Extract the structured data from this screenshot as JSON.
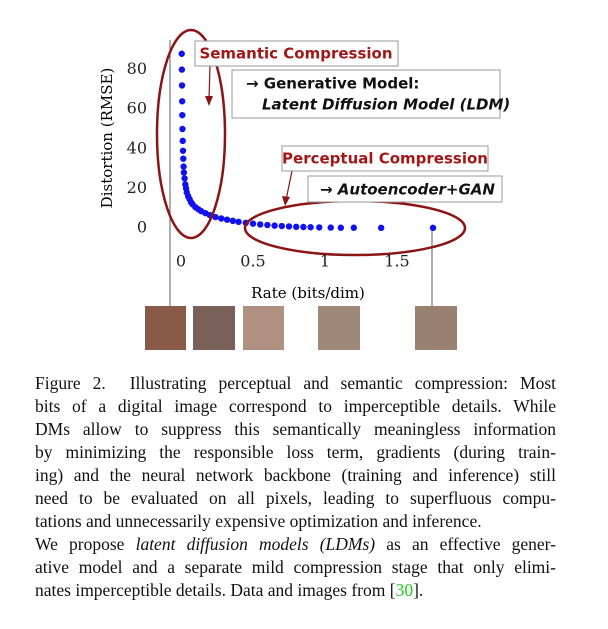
{
  "chart_data": {
    "type": "scatter",
    "x_label": "Rate (bits/dim)",
    "y_label": "Distortion (RMSE)",
    "x": [
      0.005,
      0.006,
      0.007,
      0.008,
      0.009,
      0.01,
      0.012,
      0.014,
      0.016,
      0.018,
      0.02,
      0.025,
      0.03,
      0.035,
      0.04,
      0.05,
      0.06,
      0.07,
      0.08,
      0.1,
      0.12,
      0.14,
      0.17,
      0.2,
      0.24,
      0.28,
      0.32,
      0.36,
      0.4,
      0.45,
      0.5,
      0.55,
      0.6,
      0.65,
      0.7,
      0.75,
      0.8,
      0.85,
      0.9,
      0.96,
      1.04,
      1.11,
      1.2,
      1.39,
      1.75
    ],
    "values": [
      88,
      80,
      72,
      64,
      57,
      50,
      44,
      39,
      35,
      31,
      28,
      25,
      22,
      20,
      18,
      16,
      14.5,
      13,
      12,
      10.5,
      9.5,
      8.5,
      7.5,
      6.5,
      5.5,
      4.8,
      4.2,
      3.6,
      3.1,
      2.6,
      2.2,
      1.8,
      1.5,
      1.2,
      1,
      0.8,
      0.6,
      0.5,
      0.4,
      0.3,
      0.2,
      0.15,
      0.12,
      0.1,
      0.1
    ],
    "color": "#1010f0",
    "xlim": [
      -0.1,
      2.0
    ],
    "xticks": [
      0,
      0.5,
      1,
      1.5
    ],
    "ylim": [
      -5,
      95
    ],
    "yticks": [
      0,
      20,
      40,
      60,
      80
    ],
    "annotations": [
      {
        "text": "Semantic Compression",
        "color": "#a01818"
      },
      {
        "text": "→ Generative Model:",
        "color": "#111111"
      },
      {
        "text": "Latent Diffusion Model (LDM)",
        "color": "#111111",
        "italic": true
      },
      {
        "text": "Perceptual Compression",
        "color": "#a01818"
      },
      {
        "text": "→ Autoencoder+GAN",
        "color": "#111111",
        "italic": true
      }
    ]
  },
  "caption": {
    "lines": [
      [
        "Figure 2.  Illustrating perceptual and semantic compression: Most"
      ],
      [
        "bits of a digital image correspond to imperceptible details. While"
      ],
      [
        "DMs allow to suppress this semantically meaningless information"
      ],
      [
        "by minimizing the responsible loss term, gradients (during train-"
      ],
      [
        "ing) and the neural network backbone (training and inference) still"
      ],
      [
        "need to be evaluated on all pixels, leading to superfluous compu-"
      ],
      [
        "tations and unnecessarily expensive optimization and inference."
      ],
      [
        "We propose ",
        {
          "text": "latent diffusion models (LDMs)",
          "italic": true
        },
        " as an effective gener-"
      ],
      [
        "ative model and a separate mild compression stage that only elimi-"
      ],
      [
        "nates imperceptible details. Data and images from [",
        {
          "text": "30",
          "color": "#22cc22"
        },
        "]."
      ]
    ]
  }
}
